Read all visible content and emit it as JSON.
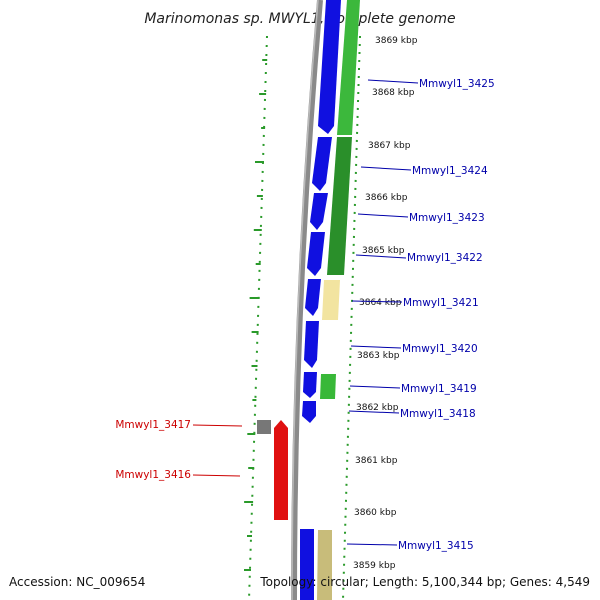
{
  "title": "Marinomonas sp. MWYL1, complete genome",
  "footer": {
    "accession": "Accession: NC_009654",
    "topology": "Topology: circular; Length: 5,100,344 bp; Genes: 4,549"
  },
  "colors": {
    "cds_forward": "#1010e0",
    "cds_reverse": "#e01010",
    "cog_green": "#2a9a2a",
    "cog_yellow": "#f2e4a0",
    "cog_khaki": "#c8bc7a",
    "cog_grey": "#777777",
    "gc_dots": "#2a9a2a",
    "backbone": "#8a8a8a"
  },
  "kbp_ticks": [
    "3869 kbp",
    "3868 kbp",
    "3867 kbp",
    "3866 kbp",
    "3865 kbp",
    "3864 kbp",
    "3863 kbp",
    "3862 kbp",
    "3861 kbp",
    "3860 kbp",
    "3859 kbp"
  ],
  "forward_genes": [
    "Mmwyl1_3425",
    "Mmwyl1_3424",
    "Mmwyl1_3423",
    "Mmwyl1_3422",
    "Mmwyl1_3421",
    "Mmwyl1_3420",
    "Mmwyl1_3419",
    "Mmwyl1_3418",
    "Mmwyl1_3415"
  ],
  "reverse_genes": [
    "Mmwyl1_3417",
    "Mmwyl1_3416"
  ]
}
